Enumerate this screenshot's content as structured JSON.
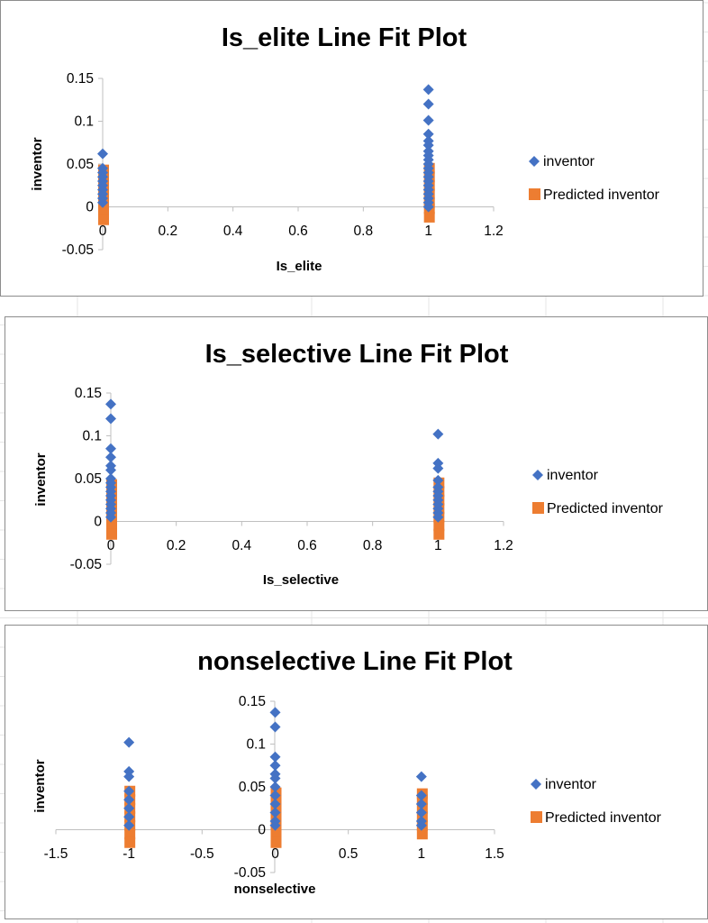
{
  "colors": {
    "inventor": "#4472C4",
    "predicted": "#ED7D31",
    "axis": "#BFBFBF",
    "gridline": "#D9D9D9"
  },
  "chart_data": [
    {
      "type": "scatter",
      "title": "Is_elite Line Fit  Plot",
      "xlabel": "Is_elite",
      "ylabel": "inventor",
      "xlim": [
        0,
        1.2
      ],
      "ylim": [
        -0.05,
        0.15
      ],
      "xticks": [
        "0",
        "0.2",
        "0.4",
        "0.6",
        "0.8",
        "1",
        "1.2"
      ],
      "yticks": [
        "-0.05",
        "0",
        "0.05",
        "0.1",
        "0.15"
      ],
      "legend_position": "right",
      "grid": false,
      "series": [
        {
          "name": "inventor",
          "marker": "diamond",
          "points": [
            [
              0,
              0.062
            ],
            [
              0,
              0.045
            ],
            [
              0,
              0.04
            ],
            [
              0,
              0.035
            ],
            [
              0,
              0.03
            ],
            [
              0,
              0.025
            ],
            [
              0,
              0.02
            ],
            [
              0,
              0.015
            ],
            [
              0,
              0.01
            ],
            [
              0,
              0.005
            ],
            [
              1,
              0.137
            ],
            [
              1,
              0.12
            ],
            [
              1,
              0.101
            ],
            [
              1,
              0.085
            ],
            [
              1,
              0.077
            ],
            [
              1,
              0.072
            ],
            [
              1,
              0.065
            ],
            [
              1,
              0.06
            ],
            [
              1,
              0.055
            ],
            [
              1,
              0.05
            ],
            [
              1,
              0.045
            ],
            [
              1,
              0.04
            ],
            [
              1,
              0.035
            ],
            [
              1,
              0.03
            ],
            [
              1,
              0.025
            ],
            [
              1,
              0.02
            ],
            [
              1,
              0.015
            ],
            [
              1,
              0.01
            ],
            [
              1,
              0.005
            ],
            [
              1,
              0.0
            ]
          ]
        },
        {
          "name": "Predicted inventor",
          "marker": "square",
          "points": [
            [
              0,
              0.043
            ],
            [
              0,
              0.035
            ],
            [
              0,
              0.025
            ],
            [
              0,
              0.015
            ],
            [
              0,
              0.005
            ],
            [
              0,
              -0.005
            ],
            [
              0,
              -0.015
            ],
            [
              1,
              0.045
            ],
            [
              1,
              0.035
            ],
            [
              1,
              0.025
            ],
            [
              1,
              0.015
            ],
            [
              1,
              0.005
            ],
            [
              1,
              -0.002
            ],
            [
              1,
              -0.012
            ]
          ]
        }
      ]
    },
    {
      "type": "scatter",
      "title": "Is_selective Line Fit  Plot",
      "xlabel": "Is_selective",
      "ylabel": "inventor",
      "xlim": [
        0,
        1.2
      ],
      "ylim": [
        -0.05,
        0.15
      ],
      "xticks": [
        "0",
        "0.2",
        "0.4",
        "0.6",
        "0.8",
        "1",
        "1.2"
      ],
      "yticks": [
        "-0.05",
        "0",
        "0.05",
        "0.1",
        "0.15"
      ],
      "legend_position": "right",
      "grid": false,
      "series": [
        {
          "name": "inventor",
          "marker": "diamond",
          "points": [
            [
              0,
              0.137
            ],
            [
              0,
              0.12
            ],
            [
              0,
              0.085
            ],
            [
              0,
              0.075
            ],
            [
              0,
              0.065
            ],
            [
              0,
              0.06
            ],
            [
              0,
              0.05
            ],
            [
              0,
              0.045
            ],
            [
              0,
              0.04
            ],
            [
              0,
              0.035
            ],
            [
              0,
              0.03
            ],
            [
              0,
              0.025
            ],
            [
              0,
              0.02
            ],
            [
              0,
              0.015
            ],
            [
              0,
              0.01
            ],
            [
              0,
              0.005
            ],
            [
              1,
              0.102
            ],
            [
              1,
              0.068
            ],
            [
              1,
              0.062
            ],
            [
              1,
              0.048
            ],
            [
              1,
              0.04
            ],
            [
              1,
              0.035
            ],
            [
              1,
              0.03
            ],
            [
              1,
              0.025
            ],
            [
              1,
              0.02
            ],
            [
              1,
              0.015
            ],
            [
              1,
              0.01
            ],
            [
              1,
              0.005
            ]
          ]
        },
        {
          "name": "Predicted inventor",
          "marker": "square",
          "points": [
            [
              0,
              0.043
            ],
            [
              0,
              0.035
            ],
            [
              0,
              0.025
            ],
            [
              0,
              0.015
            ],
            [
              0,
              0.005
            ],
            [
              0,
              -0.005
            ],
            [
              0,
              -0.015
            ],
            [
              1,
              0.045
            ],
            [
              1,
              0.035
            ],
            [
              1,
              0.025
            ],
            [
              1,
              0.015
            ],
            [
              1,
              0.005
            ],
            [
              1,
              -0.005
            ],
            [
              1,
              -0.015
            ]
          ]
        }
      ]
    },
    {
      "type": "scatter",
      "title": "nonselective Line Fit  Plot",
      "xlabel": "nonselective",
      "ylabel": "inventor",
      "xlim": [
        -1.5,
        1.5
      ],
      "ylim": [
        -0.05,
        0.15
      ],
      "xticks": [
        "-1.5",
        "-1",
        "-0.5",
        "0",
        "0.5",
        "1",
        "1.5"
      ],
      "yticks": [
        "-0.05",
        "0",
        "0.05",
        "0.1",
        "0.15"
      ],
      "legend_position": "right",
      "grid": false,
      "series": [
        {
          "name": "inventor",
          "marker": "diamond",
          "points": [
            [
              -1,
              0.102
            ],
            [
              -1,
              0.068
            ],
            [
              -1,
              0.062
            ],
            [
              -1,
              0.045
            ],
            [
              -1,
              0.035
            ],
            [
              -1,
              0.025
            ],
            [
              -1,
              0.015
            ],
            [
              -1,
              0.005
            ],
            [
              0,
              0.137
            ],
            [
              0,
              0.12
            ],
            [
              0,
              0.085
            ],
            [
              0,
              0.075
            ],
            [
              0,
              0.065
            ],
            [
              0,
              0.06
            ],
            [
              0,
              0.05
            ],
            [
              0,
              0.04
            ],
            [
              0,
              0.03
            ],
            [
              0,
              0.02
            ],
            [
              0,
              0.01
            ],
            [
              0,
              0.005
            ],
            [
              1,
              0.062
            ],
            [
              1,
              0.04
            ],
            [
              1,
              0.03
            ],
            [
              1,
              0.02
            ],
            [
              1,
              0.01
            ],
            [
              1,
              0.005
            ]
          ]
        },
        {
          "name": "Predicted inventor",
          "marker": "square",
          "points": [
            [
              -1,
              0.045
            ],
            [
              -1,
              0.035
            ],
            [
              -1,
              0.025
            ],
            [
              -1,
              0.015
            ],
            [
              -1,
              0.005
            ],
            [
              -1,
              -0.005
            ],
            [
              -1,
              -0.015
            ],
            [
              0,
              0.043
            ],
            [
              0,
              0.035
            ],
            [
              0,
              0.025
            ],
            [
              0,
              0.015
            ],
            [
              0,
              0.005
            ],
            [
              0,
              -0.005
            ],
            [
              0,
              -0.015
            ],
            [
              1,
              0.042
            ],
            [
              1,
              0.035
            ],
            [
              1,
              0.025
            ],
            [
              1,
              0.015
            ],
            [
              1,
              0.005
            ],
            [
              1,
              -0.005
            ]
          ]
        }
      ]
    }
  ]
}
